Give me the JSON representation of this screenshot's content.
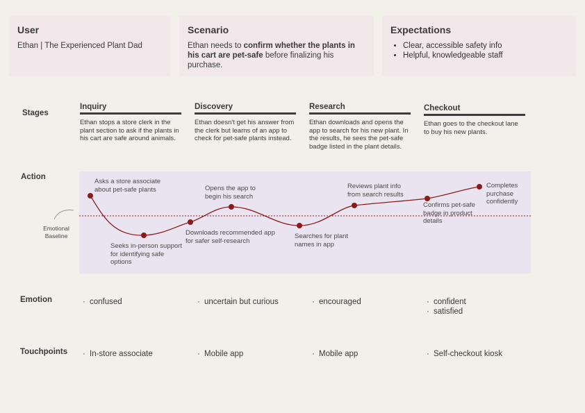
{
  "user": {
    "title": "User",
    "text": "Ethan | The Experienced Plant Dad"
  },
  "scenario": {
    "title": "Scenario",
    "pre": "Ethan needs to ",
    "bold": "confirm whether the plants in his cart are pet-safe",
    "post": " before finalizing his purchase."
  },
  "expectations": {
    "title": "Expectations",
    "items": [
      "Clear, accessible safety info",
      "Helpful, knowledgeable staff"
    ]
  },
  "rows": {
    "stages": "Stages",
    "action": "Action",
    "emotion": "Emotion",
    "touchpoints": "Touchpoints"
  },
  "stages": [
    {
      "title": "Inquiry",
      "desc": "Ethan stops a store clerk in the plant section to ask if the plants in his cart are safe around animals."
    },
    {
      "title": "Discovery",
      "desc": "Ethan doesn't get his answer from the clerk but learns of an app to check for pet-safe plants instead."
    },
    {
      "title": "Research",
      "desc": "Ethan downloads and opens the app to search for his new plant. In the results, he sees the pet-safe badge listed in the plant details."
    },
    {
      "title": "Checkout",
      "desc": "Ethan goes to the checkout lane to buy his new plants."
    }
  ],
  "baseline_label": "Emotional Baseline",
  "actions": [
    "Asks a store associate about pet-safe plants",
    "Seeks in-person support for identifying safe options",
    "Downloads recommended app for safer self-research",
    "Opens the app to begin his search",
    "Searches for plant names in app",
    "Reviews plant info from search results",
    "Confirms pet-safe badge in product details",
    "Completes purchase confidently"
  ],
  "emotions": [
    [
      "confused"
    ],
    [
      "uncertain but curious"
    ],
    [
      "encouraged"
    ],
    [
      "confident",
      "satisfied"
    ]
  ],
  "touchpoints": [
    "In-store associate",
    "Mobile app",
    "Mobile app",
    "Self-checkout kiosk"
  ],
  "colors": {
    "background": "#f3efeb",
    "card": "#f2e8ec",
    "action_area": "#e9e4ef",
    "curve": "#8b1a1a",
    "baseline": "#8b1a1a"
  }
}
